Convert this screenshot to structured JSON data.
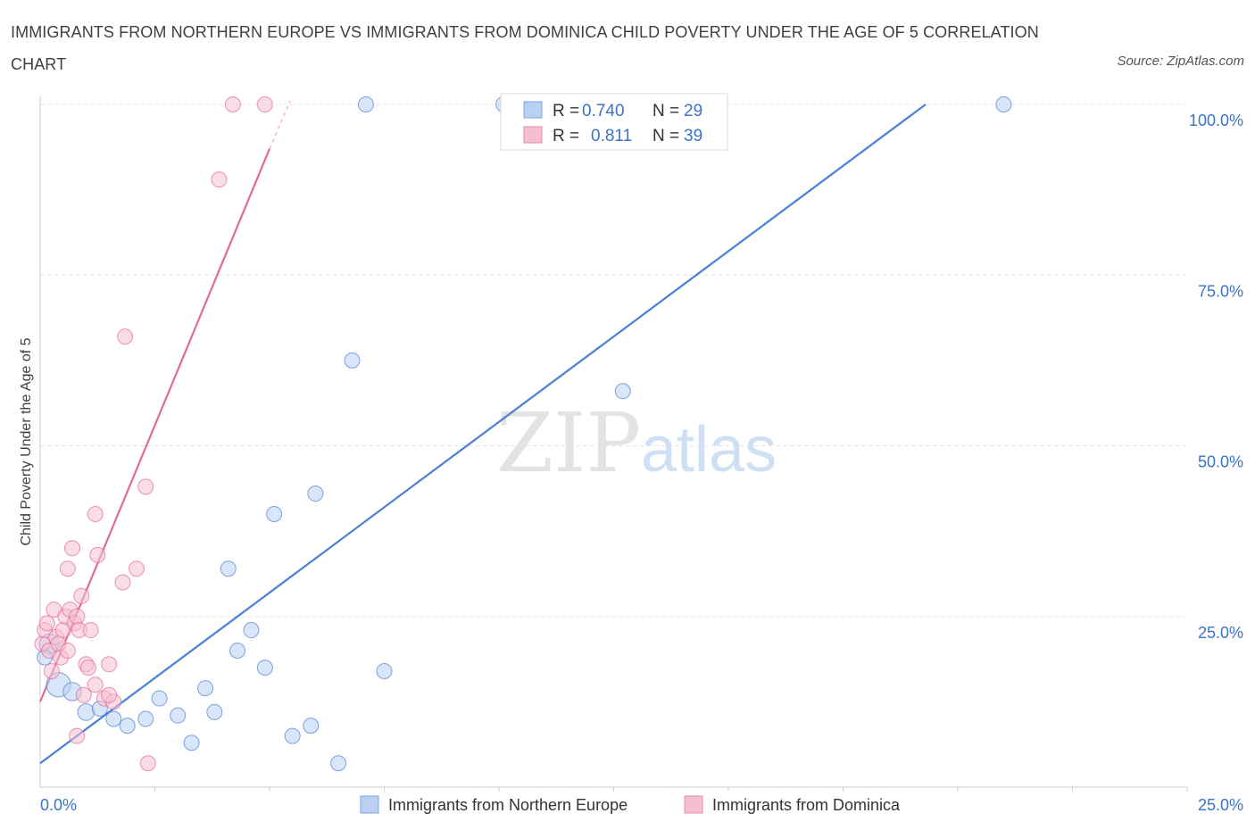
{
  "title": "IMMIGRANTS FROM NORTHERN EUROPE VS IMMIGRANTS FROM DOMINICA CHILD POVERTY UNDER THE AGE OF 5 CORRELATION CHART",
  "source": "Source: ZipAtlas.com",
  "watermark": {
    "zip": "ZIP",
    "atlas": "atlas"
  },
  "legend_top": {
    "rows": [
      {
        "r_label": "R =",
        "r_value": "0.740",
        "n_label": "N =",
        "n_value": "29"
      },
      {
        "r_label": "R =",
        "r_value": "0.811",
        "n_label": "N =",
        "n_value": "39"
      }
    ]
  },
  "chart_data": {
    "type": "scatter",
    "xlabel": "",
    "ylabel": "Child Poverty Under the Age of 5",
    "xlim": [
      0,
      25
    ],
    "ylim": [
      0,
      100
    ],
    "x_tick_labels": [
      "0.0%",
      "25.0%"
    ],
    "y_tick_labels": [
      "25.0%",
      "50.0%",
      "75.0%",
      "100.0%"
    ],
    "y_ticks": [
      25,
      50,
      75,
      100
    ],
    "colors": {
      "blue": "#4a7fd4",
      "blue_fill": "#b9d0f3",
      "pink": "#e26a96",
      "pink_fill": "#f5bfd0",
      "axis_text": "#3b73c8"
    },
    "series": [
      {
        "name": "Immigrants from Northern Europe",
        "color": "#4a7fd4",
        "r": 0.74,
        "n": 29,
        "trend": {
          "x0": 0.0,
          "y0": 3.5,
          "x1": 19.3,
          "y1": 100
        },
        "points": [
          {
            "x": 0.2,
            "y": 21,
            "s": 1.3
          },
          {
            "x": 0.4,
            "y": 15,
            "s": 1.6
          },
          {
            "x": 0.7,
            "y": 14,
            "s": 1.2
          },
          {
            "x": 1.0,
            "y": 11,
            "s": 1.1
          },
          {
            "x": 1.3,
            "y": 11.5,
            "s": 1
          },
          {
            "x": 1.6,
            "y": 10,
            "s": 1
          },
          {
            "x": 1.9,
            "y": 9,
            "s": 1
          },
          {
            "x": 2.3,
            "y": 10,
            "s": 1
          },
          {
            "x": 2.6,
            "y": 13,
            "s": 1
          },
          {
            "x": 3.0,
            "y": 10.5,
            "s": 1
          },
          {
            "x": 3.3,
            "y": 6.5,
            "s": 1
          },
          {
            "x": 3.6,
            "y": 14.5,
            "s": 1
          },
          {
            "x": 3.8,
            "y": 11,
            "s": 1
          },
          {
            "x": 4.1,
            "y": 32,
            "s": 1
          },
          {
            "x": 4.3,
            "y": 20,
            "s": 1
          },
          {
            "x": 4.6,
            "y": 23,
            "s": 1
          },
          {
            "x": 4.9,
            "y": 17.5,
            "s": 1
          },
          {
            "x": 5.1,
            "y": 40,
            "s": 1
          },
          {
            "x": 5.5,
            "y": 7.5,
            "s": 1
          },
          {
            "x": 5.9,
            "y": 9,
            "s": 1
          },
          {
            "x": 6.0,
            "y": 43,
            "s": 1
          },
          {
            "x": 6.5,
            "y": 3.5,
            "s": 1
          },
          {
            "x": 6.8,
            "y": 62.5,
            "s": 1
          },
          {
            "x": 7.1,
            "y": 100,
            "s": 1
          },
          {
            "x": 7.5,
            "y": 17,
            "s": 1
          },
          {
            "x": 10.1,
            "y": 100,
            "s": 1
          },
          {
            "x": 12.7,
            "y": 58,
            "s": 1
          },
          {
            "x": 21.0,
            "y": 100,
            "s": 1
          },
          {
            "x": 0.1,
            "y": 19,
            "s": 1
          }
        ]
      },
      {
        "name": "Immigrants from Dominica",
        "color": "#e26a96",
        "r": 0.811,
        "n": 39,
        "trend": {
          "x0": 0.0,
          "y0": 12.5,
          "x1": 5.0,
          "y1": 93.5
        },
        "trend_dashed": {
          "x0": 5.0,
          "y0": 93.5,
          "x1": 5.45,
          "y1": 100.5
        },
        "points": [
          {
            "x": 0.05,
            "y": 21,
            "s": 1
          },
          {
            "x": 0.1,
            "y": 23,
            "s": 1
          },
          {
            "x": 0.15,
            "y": 24,
            "s": 1
          },
          {
            "x": 0.2,
            "y": 20,
            "s": 1
          },
          {
            "x": 0.25,
            "y": 17,
            "s": 1
          },
          {
            "x": 0.3,
            "y": 26,
            "s": 1
          },
          {
            "x": 0.35,
            "y": 22,
            "s": 1
          },
          {
            "x": 0.4,
            "y": 21,
            "s": 1
          },
          {
            "x": 0.45,
            "y": 19,
            "s": 1
          },
          {
            "x": 0.5,
            "y": 23,
            "s": 1
          },
          {
            "x": 0.55,
            "y": 25,
            "s": 1
          },
          {
            "x": 0.6,
            "y": 20,
            "s": 1
          },
          {
            "x": 0.6,
            "y": 32,
            "s": 1
          },
          {
            "x": 0.65,
            "y": 26,
            "s": 1
          },
          {
            "x": 0.7,
            "y": 35,
            "s": 1
          },
          {
            "x": 0.75,
            "y": 24,
            "s": 1
          },
          {
            "x": 0.8,
            "y": 25,
            "s": 1
          },
          {
            "x": 0.8,
            "y": 7.5,
            "s": 1
          },
          {
            "x": 0.85,
            "y": 23,
            "s": 1
          },
          {
            "x": 0.9,
            "y": 28,
            "s": 1
          },
          {
            "x": 0.95,
            "y": 13.5,
            "s": 1
          },
          {
            "x": 1.0,
            "y": 18,
            "s": 1
          },
          {
            "x": 1.05,
            "y": 17.5,
            "s": 1
          },
          {
            "x": 1.1,
            "y": 23,
            "s": 1
          },
          {
            "x": 1.2,
            "y": 15,
            "s": 1
          },
          {
            "x": 1.2,
            "y": 40,
            "s": 1
          },
          {
            "x": 1.25,
            "y": 34,
            "s": 1
          },
          {
            "x": 1.4,
            "y": 13,
            "s": 1
          },
          {
            "x": 1.5,
            "y": 18,
            "s": 1
          },
          {
            "x": 1.6,
            "y": 12.5,
            "s": 1
          },
          {
            "x": 1.8,
            "y": 30,
            "s": 1
          },
          {
            "x": 1.85,
            "y": 66,
            "s": 1
          },
          {
            "x": 2.1,
            "y": 32,
            "s": 1
          },
          {
            "x": 2.3,
            "y": 44,
            "s": 1
          },
          {
            "x": 2.35,
            "y": 3.5,
            "s": 1
          },
          {
            "x": 3.9,
            "y": 89,
            "s": 1
          },
          {
            "x": 4.2,
            "y": 100,
            "s": 1
          },
          {
            "x": 4.9,
            "y": 100,
            "s": 1
          },
          {
            "x": 1.5,
            "y": 13.5,
            "s": 1
          }
        ]
      }
    ]
  }
}
